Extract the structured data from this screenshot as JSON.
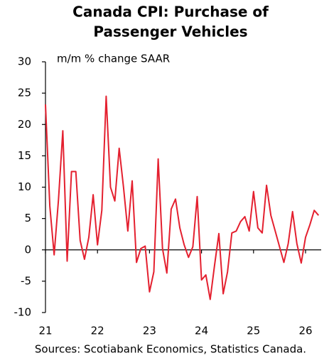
{
  "chart_data": {
    "type": "line",
    "title": [
      "Canada CPI: Purchase of",
      "Passenger Vehicles"
    ],
    "subtitle": "m/m % change SAAR",
    "source": "Sources: Scotiabank Economics, Statistics Canada.",
    "categories": [
      "21",
      null,
      null,
      null,
      null,
      null,
      null,
      null,
      null,
      null,
      null,
      null,
      "22",
      null,
      null,
      null,
      null,
      null,
      null,
      null,
      null,
      null,
      null,
      null,
      "23",
      null,
      null,
      null,
      null,
      null,
      null,
      null,
      null,
      null,
      null,
      null,
      "24",
      null,
      null,
      null,
      null,
      null,
      null,
      null,
      null,
      null,
      null,
      null,
      "25",
      null,
      null,
      null,
      null,
      null,
      null,
      null,
      null,
      null,
      null,
      null,
      "26",
      null,
      null,
      null
    ],
    "series": [
      {
        "name": "Purchase of Passenger Vehicles",
        "color": "#e4202f",
        "values": [
          23.2,
          7,
          -0.8,
          8,
          19,
          -1.8,
          12.5,
          12.5,
          1.5,
          -1.5,
          2,
          8.8,
          0.8,
          6.3,
          24.5,
          10,
          7.8,
          16.2,
          10,
          3,
          11,
          -2,
          0.2,
          0.6,
          -6.7,
          -3.5,
          14.5,
          0.2,
          -3.7,
          6.5,
          8.1,
          3.5,
          0.8,
          -1.2,
          0.5,
          8.5,
          -4.8,
          -4,
          -7.9,
          -2.5,
          2.6,
          -7,
          -3.5,
          2.7,
          3,
          4.5,
          5.3,
          3,
          9.3,
          3.5,
          2.7,
          10.3,
          5.5,
          3,
          0.5,
          -2,
          1,
          6.1,
          1,
          -2.1,
          2,
          4,
          6.3,
          5.5
        ]
      }
    ],
    "ylim": [
      -10,
      30
    ],
    "yticks": [
      -10,
      -5,
      0,
      5,
      10,
      15,
      20,
      25,
      30
    ]
  }
}
